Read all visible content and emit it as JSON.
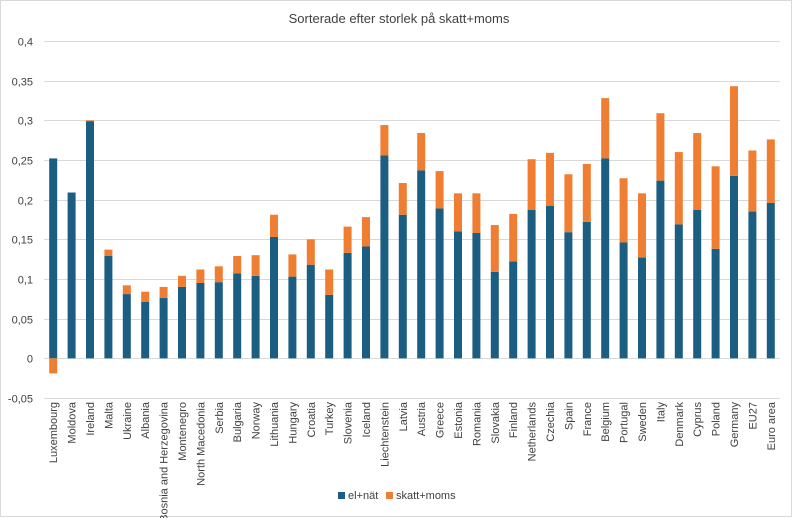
{
  "chart_data": {
    "type": "bar",
    "stacked": true,
    "title": "Sorterade efter storlek på skatt+moms",
    "xlabel": "",
    "ylabel": "",
    "ylim": [
      -0.05,
      0.4
    ],
    "y_ticks": [
      "0,4",
      "0,35",
      "0,3",
      "0,25",
      "0,2",
      "0,15",
      "0,1",
      "0,05",
      "0",
      "-0,05"
    ],
    "y_tick_values": [
      0.4,
      0.35,
      0.3,
      0.25,
      0.2,
      0.15,
      0.1,
      0.05,
      0,
      -0.05
    ],
    "grid": true,
    "legend_position": "bottom",
    "categories": [
      "Luxembourg",
      "Moldova",
      "Ireland",
      "Malta",
      "Ukraine",
      "Albania",
      "Bosnia and Herzegovina",
      "Montenegro",
      "North Macedonia",
      "Serbia",
      "Bulgaria",
      "Norway",
      "Lithuania",
      "Hungary",
      "Croatia",
      "Turkey",
      "Slovenia",
      "Iceland",
      "Liechtenstein",
      "Latvia",
      "Austria",
      "Greece",
      "Estonia",
      "Romania",
      "Slovakia",
      "Finland",
      "Netherlands",
      "Czechia",
      "Spain",
      "France",
      "Belgium",
      "Portugal",
      "Sweden",
      "Italy",
      "Denmark",
      "Cyprus",
      "Poland",
      "Germany",
      "EU27",
      "Euro area"
    ],
    "series": [
      {
        "name": "el+nät",
        "color": "#1b5e82",
        "values": [
          0.252,
          0.209,
          0.299,
          0.129,
          0.081,
          0.071,
          0.076,
          0.09,
          0.095,
          0.096,
          0.107,
          0.104,
          0.153,
          0.103,
          0.118,
          0.08,
          0.133,
          0.141,
          0.256,
          0.181,
          0.237,
          0.189,
          0.16,
          0.158,
          0.109,
          0.122,
          0.187,
          0.192,
          0.159,
          0.172,
          0.252,
          0.146,
          0.127,
          0.224,
          0.169,
          0.187,
          0.138,
          0.23,
          0.185,
          0.196
        ]
      },
      {
        "name": "skatt+moms",
        "color": "#ef7d32",
        "values": [
          -0.019,
          0.0,
          0.001,
          0.008,
          0.011,
          0.013,
          0.014,
          0.014,
          0.017,
          0.02,
          0.022,
          0.026,
          0.028,
          0.028,
          0.032,
          0.032,
          0.033,
          0.037,
          0.038,
          0.04,
          0.047,
          0.047,
          0.048,
          0.05,
          0.059,
          0.06,
          0.064,
          0.067,
          0.073,
          0.073,
          0.076,
          0.081,
          0.081,
          0.085,
          0.091,
          0.097,
          0.104,
          0.113,
          0.077,
          0.08
        ]
      }
    ]
  }
}
